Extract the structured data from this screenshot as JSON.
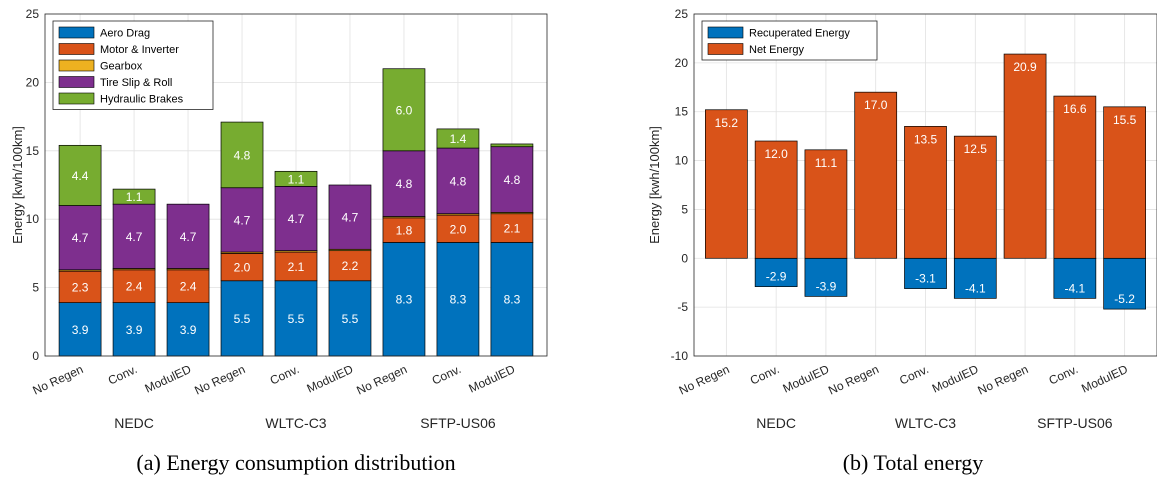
{
  "chart_data": [
    {
      "type": "bar",
      "stacked": true,
      "caption": "(a) Energy consumption distribution",
      "ylabel": "Energy [kwh/100km]",
      "ylim": [
        0,
        25
      ],
      "yticks": [
        0,
        5,
        10,
        15,
        20,
        25
      ],
      "grid": true,
      "legend_position": "top-left",
      "categories": [
        "No Regen",
        "Conv.",
        "ModulED",
        "No Regen",
        "Conv.",
        "ModulED",
        "No Regen",
        "Conv.",
        "ModulED"
      ],
      "groups": [
        {
          "label": "NEDC",
          "start": 0,
          "end": 2
        },
        {
          "label": "WLTC-C3",
          "start": 3,
          "end": 5
        },
        {
          "label": "SFTP-US06",
          "start": 6,
          "end": 8
        }
      ],
      "series": [
        {
          "name": "Aero Drag",
          "color": "#0072BD",
          "values": [
            3.9,
            3.9,
            3.9,
            5.5,
            5.5,
            5.5,
            8.3,
            8.3,
            8.3
          ],
          "labels": [
            "3.9",
            "3.9",
            "3.9",
            "5.5",
            "5.5",
            "5.5",
            "8.3",
            "8.3",
            "8.3"
          ]
        },
        {
          "name": "Motor & Inverter",
          "color": "#D95319",
          "values": [
            2.3,
            2.4,
            2.4,
            2.0,
            2.1,
            2.2,
            1.8,
            2.0,
            2.1
          ],
          "labels": [
            "2.3",
            "2.4",
            "2.4",
            "2.0",
            "2.1",
            "2.2",
            "1.8",
            "2.0",
            "2.1"
          ]
        },
        {
          "name": "Gearbox",
          "color": "#EDB120",
          "values": [
            0.1,
            0.1,
            0.1,
            0.1,
            0.1,
            0.1,
            0.1,
            0.1,
            0.1
          ],
          "labels": [
            "",
            "",
            "",
            "",
            "",
            "",
            "",
            "",
            ""
          ]
        },
        {
          "name": "Tire Slip & Roll",
          "color": "#7E2F8E",
          "values": [
            4.7,
            4.7,
            4.7,
            4.7,
            4.7,
            4.7,
            4.8,
            4.8,
            4.8
          ],
          "labels": [
            "4.7",
            "4.7",
            "4.7",
            "4.7",
            "4.7",
            "4.7",
            "4.8",
            "4.8",
            "4.8"
          ]
        },
        {
          "name": "Hydraulic Brakes",
          "color": "#77AC30",
          "values": [
            4.4,
            1.1,
            0.0,
            4.8,
            1.1,
            0.0,
            6.0,
            1.4,
            0.2
          ],
          "labels": [
            "4.4",
            "1.1",
            "",
            "4.8",
            "1.1",
            "",
            "6.0",
            "1.4",
            ""
          ]
        }
      ]
    },
    {
      "type": "bar",
      "stacked": true,
      "caption": "(b) Total energy",
      "ylabel": "Energy [kwh/100km]",
      "ylim": [
        -10,
        25
      ],
      "yticks": [
        -10,
        -5,
        0,
        5,
        10,
        15,
        20,
        25
      ],
      "grid": true,
      "legend_position": "top-left",
      "categories": [
        "No Regen",
        "Conv.",
        "ModulED",
        "No Regen",
        "Conv.",
        "ModulED",
        "No Regen",
        "Conv.",
        "ModulED"
      ],
      "groups": [
        {
          "label": "NEDC",
          "start": 0,
          "end": 2
        },
        {
          "label": "WLTC-C3",
          "start": 3,
          "end": 5
        },
        {
          "label": "SFTP-US06",
          "start": 6,
          "end": 8
        }
      ],
      "series": [
        {
          "name": "Recuperated Energy",
          "color": "#0072BD",
          "values": [
            0,
            -2.9,
            -3.9,
            0,
            -3.1,
            -4.1,
            0,
            -4.1,
            -5.2
          ],
          "labels": [
            "",
            "-2.9",
            "-3.9",
            "",
            "-3.1",
            "-4.1",
            "",
            "-4.1",
            "-5.2"
          ]
        },
        {
          "name": "Net Energy",
          "color": "#D95319",
          "values": [
            15.2,
            12.0,
            11.1,
            17.0,
            13.5,
            12.5,
            20.9,
            16.6,
            15.5
          ],
          "labels": [
            "15.2",
            "12.0",
            "11.1",
            "17.0",
            "13.5",
            "12.5",
            "20.9",
            "16.6",
            "15.5"
          ]
        }
      ]
    }
  ]
}
